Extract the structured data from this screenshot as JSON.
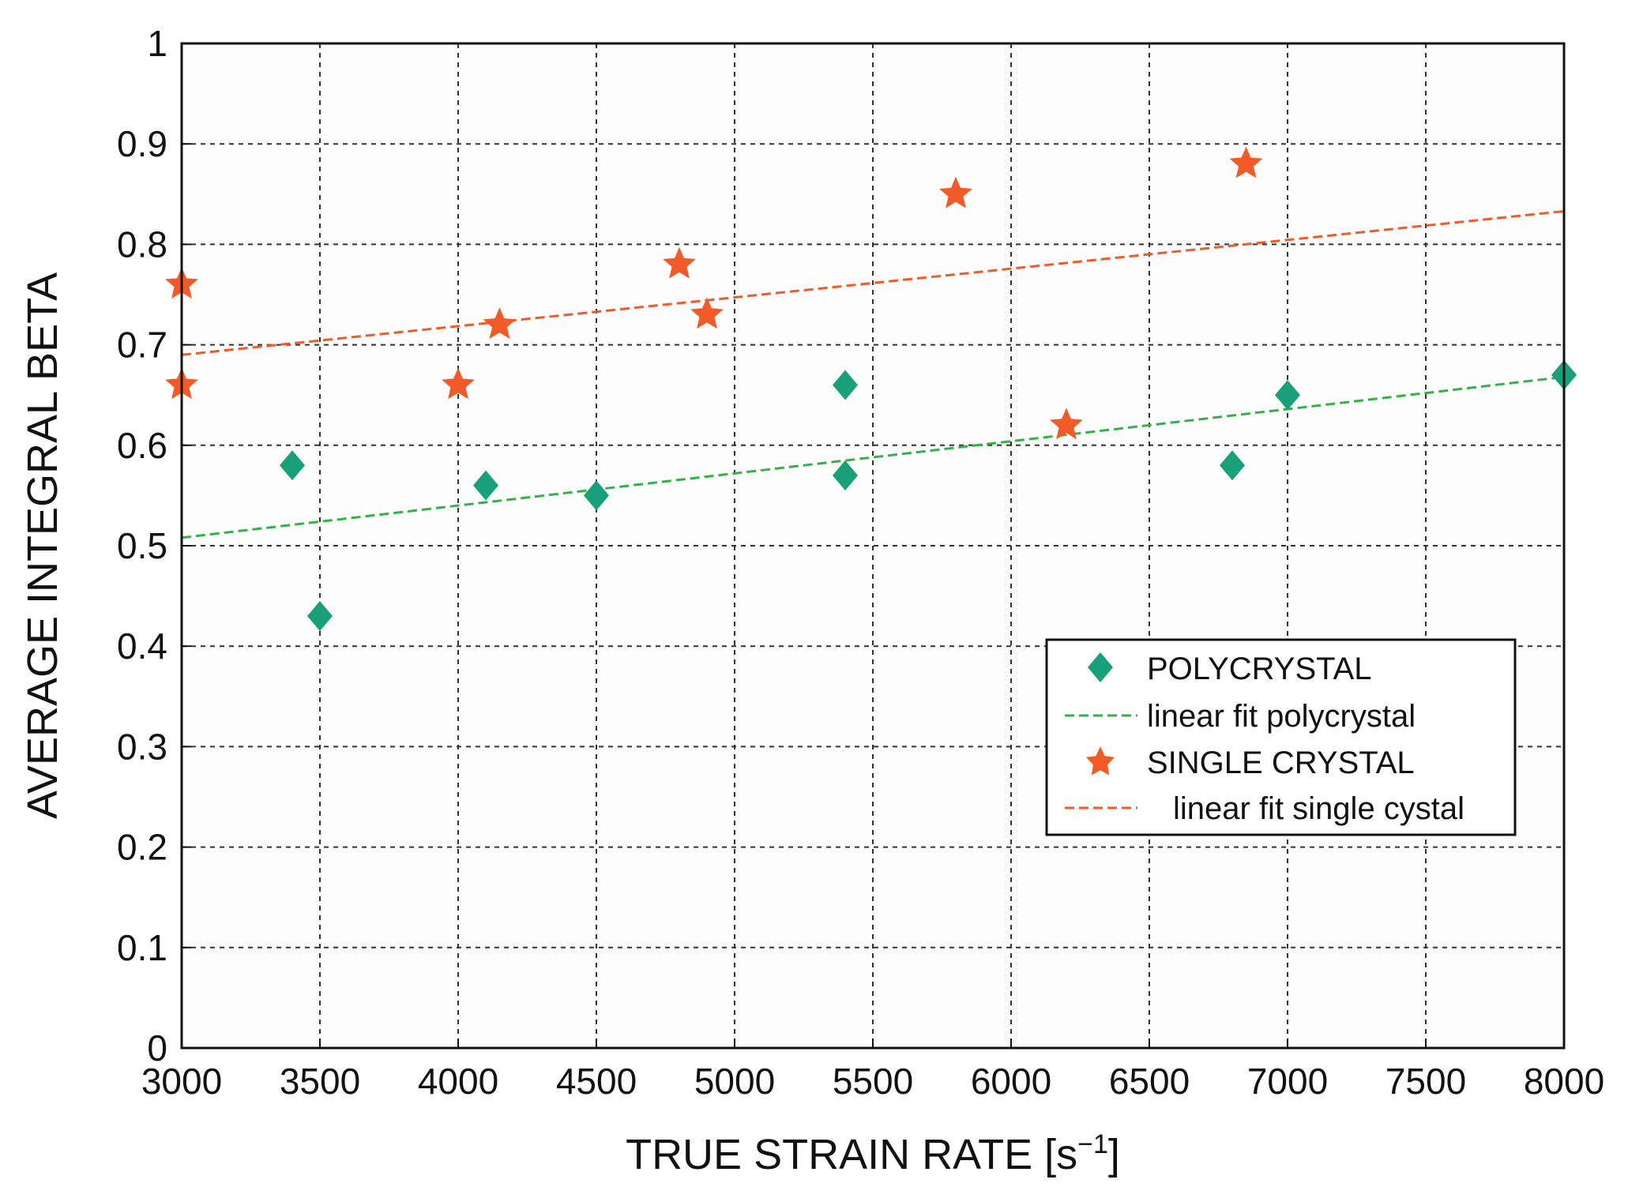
{
  "chart_data": {
    "type": "scatter",
    "title": "",
    "xlabel": "TRUE STRAIN RATE [s",
    "xlabel_superscript": "−1",
    "xlabel_suffix": "]",
    "ylabel": "AVERAGE INTEGRAL BETA",
    "xlim": [
      3000,
      8000
    ],
    "ylim": [
      0,
      1
    ],
    "grid": true,
    "legend_position": "lower-right",
    "x_ticks": [
      3000,
      3500,
      4000,
      4500,
      5000,
      5500,
      6000,
      6500,
      7000,
      7500,
      8000
    ],
    "x_tick_labels": [
      "3000",
      "3500",
      "4000",
      "4500",
      "5000",
      "5500",
      "6000",
      "6500",
      "7000",
      "7500",
      "8000"
    ],
    "y_ticks": [
      0,
      0.1,
      0.2,
      0.3,
      0.4,
      0.5,
      0.6,
      0.7,
      0.8,
      0.9,
      1
    ],
    "y_tick_labels": [
      "0",
      "0.1",
      "0.2",
      "0.3",
      "0.4",
      "0.5",
      "0.6",
      "0.7",
      "0.8",
      "0.9",
      "1"
    ],
    "series": [
      {
        "name": "POLYCRYSTAL",
        "kind": "scatter",
        "marker": "diamond",
        "color": "#17a07a",
        "x": [
          3400,
          3500,
          4100,
          4500,
          5400,
          5400,
          6800,
          7000,
          8000
        ],
        "y": [
          0.58,
          0.43,
          0.56,
          0.55,
          0.66,
          0.57,
          0.58,
          0.65,
          0.67
        ]
      },
      {
        "name": "linear fit polycrystal",
        "kind": "line",
        "style": "dashed",
        "color": "#33b24a",
        "x": [
          3000,
          8000
        ],
        "y": [
          0.508,
          0.668
        ]
      },
      {
        "name": "SINGLE CRYSTAL",
        "kind": "scatter",
        "marker": "star",
        "color": "#f25a28",
        "x": [
          3000,
          3000,
          4000,
          4150,
          4800,
          4900,
          5800,
          6200,
          6850
        ],
        "y": [
          0.76,
          0.66,
          0.66,
          0.72,
          0.78,
          0.73,
          0.85,
          0.62,
          0.88
        ]
      },
      {
        "name": "linear fit single cystal",
        "kind": "line",
        "style": "dashed",
        "color": "#f25a28",
        "x": [
          3000,
          8000
        ],
        "y": [
          0.69,
          0.833
        ]
      }
    ]
  }
}
